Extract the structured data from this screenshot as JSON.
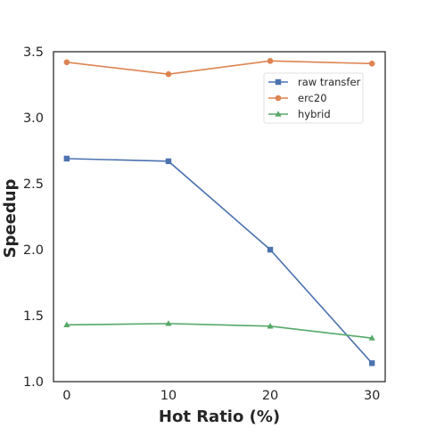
{
  "chart_data": {
    "type": "line",
    "title": "",
    "xlabel": "Hot Ratio (%)",
    "ylabel": "Speedup",
    "x": [
      0,
      10,
      20,
      30
    ],
    "xticks": [
      "0",
      "10",
      "20",
      "30"
    ],
    "yticks": [
      "1.0",
      "1.5",
      "2.0",
      "2.5",
      "3.0",
      "3.5"
    ],
    "xlim": [
      -1.3,
      31.3
    ],
    "ylim": [
      1.0,
      3.5
    ],
    "grid": false,
    "legend_position": "top-right",
    "series": [
      {
        "name": "raw transfer",
        "color": "#4c72b0",
        "marker": "square",
        "values": [
          2.69,
          2.67,
          2.0,
          1.14
        ]
      },
      {
        "name": "erc20",
        "color": "#dd8452",
        "marker": "circle",
        "values": [
          3.42,
          3.33,
          3.43,
          3.41
        ]
      },
      {
        "name": "hybrid",
        "color": "#55a868",
        "marker": "triangle",
        "values": [
          1.43,
          1.44,
          1.42,
          1.33
        ]
      }
    ]
  }
}
